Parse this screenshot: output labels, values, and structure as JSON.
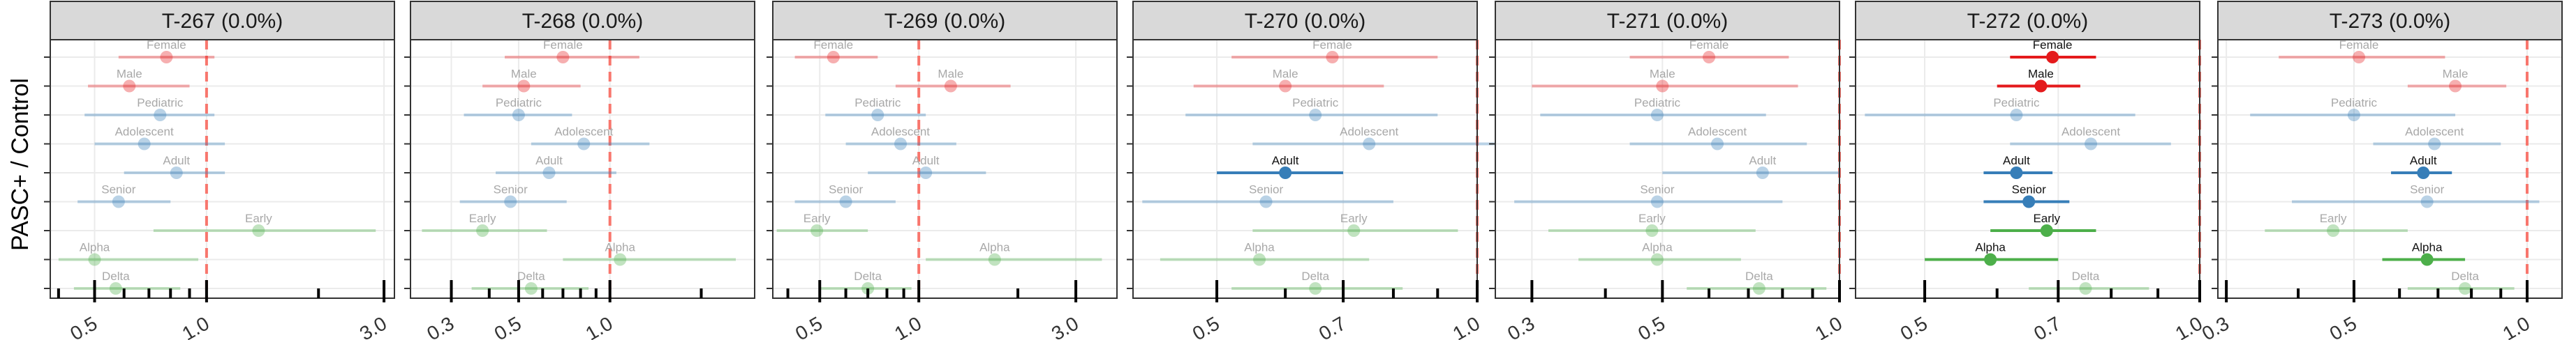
{
  "figure": {
    "ylabel": "PASC+ / Control",
    "colors": {
      "sex": "#E41A1C",
      "age": "#377EB8",
      "variant": "#4DAF4A",
      "reference_line": "#F8766D",
      "strip_fill": "#D9D9D9",
      "grid": "#EBEBEB"
    },
    "row_order": [
      "Female",
      "Male",
      "Pediatric",
      "Adolescent",
      "Adult",
      "Senior",
      "Early",
      "Alpha",
      "Delta"
    ],
    "row_groups": {
      "Female": "sex",
      "Male": "sex",
      "Pediatric": "age",
      "Adolescent": "age",
      "Adult": "age",
      "Senior": "age",
      "Early": "variant",
      "Alpha": "variant",
      "Delta": "variant"
    }
  },
  "chart_data": [
    {
      "type": "scatter",
      "title": "T-267 (0.0%)",
      "x_scale": "log",
      "xlim": [
        0.38,
        3.2
      ],
      "xticks": [
        "0.5",
        "1.0",
        "3.0"
      ],
      "x_minor": [
        0.4,
        0.6,
        0.7,
        0.8,
        0.9,
        2.0
      ],
      "series": [
        {
          "label": "Female",
          "estimate": 0.78,
          "lo": 0.58,
          "hi": 1.05,
          "significant": false
        },
        {
          "label": "Male",
          "estimate": 0.62,
          "lo": 0.48,
          "hi": 0.9,
          "significant": false
        },
        {
          "label": "Pediatric",
          "estimate": 0.75,
          "lo": 0.47,
          "hi": 1.05,
          "significant": false
        },
        {
          "label": "Adolescent",
          "estimate": 0.68,
          "lo": 0.5,
          "hi": 1.12,
          "significant": false
        },
        {
          "label": "Adult",
          "estimate": 0.83,
          "lo": 0.6,
          "hi": 1.12,
          "significant": false
        },
        {
          "label": "Senior",
          "estimate": 0.58,
          "lo": 0.45,
          "hi": 0.8,
          "significant": false
        },
        {
          "label": "Early",
          "estimate": 1.38,
          "lo": 0.72,
          "hi": 2.85,
          "significant": false
        },
        {
          "label": "Alpha",
          "estimate": 0.5,
          "lo": 0.4,
          "hi": 0.95,
          "significant": false
        },
        {
          "label": "Delta",
          "estimate": 0.57,
          "lo": 0.44,
          "hi": 0.85,
          "significant": false
        }
      ]
    },
    {
      "type": "scatter",
      "title": "T-268 (0.0%)",
      "x_scale": "log",
      "xlim": [
        0.22,
        3.0
      ],
      "xticks": [
        "0.3",
        "0.5",
        "1.0"
      ],
      "x_minor": [
        0.4,
        0.6,
        0.7,
        0.8,
        0.9,
        2.0
      ],
      "series": [
        {
          "label": "Female",
          "estimate": 0.7,
          "lo": 0.45,
          "hi": 1.25,
          "significant": false
        },
        {
          "label": "Male",
          "estimate": 0.52,
          "lo": 0.38,
          "hi": 0.8,
          "significant": false
        },
        {
          "label": "Pediatric",
          "estimate": 0.5,
          "lo": 0.33,
          "hi": 0.75,
          "significant": false
        },
        {
          "label": "Adolescent",
          "estimate": 0.82,
          "lo": 0.55,
          "hi": 1.35,
          "significant": false
        },
        {
          "label": "Adult",
          "estimate": 0.63,
          "lo": 0.42,
          "hi": 1.05,
          "significant": false
        },
        {
          "label": "Senior",
          "estimate": 0.47,
          "lo": 0.32,
          "hi": 0.72,
          "significant": false
        },
        {
          "label": "Early",
          "estimate": 0.38,
          "lo": 0.24,
          "hi": 0.62,
          "significant": false
        },
        {
          "label": "Alpha",
          "estimate": 1.08,
          "lo": 0.7,
          "hi": 2.6,
          "significant": false
        },
        {
          "label": "Delta",
          "estimate": 0.55,
          "lo": 0.35,
          "hi": 0.85,
          "significant": false
        }
      ]
    },
    {
      "type": "scatter",
      "title": "T-269 (0.0%)",
      "x_scale": "log",
      "xlim": [
        0.36,
        4.0
      ],
      "xticks": [
        "0.5",
        "1.0",
        "3.0"
      ],
      "x_minor": [
        0.4,
        0.6,
        0.7,
        0.8,
        0.9,
        2.0
      ],
      "series": [
        {
          "label": "Female",
          "estimate": 0.55,
          "lo": 0.42,
          "hi": 0.75,
          "significant": false
        },
        {
          "label": "Male",
          "estimate": 1.25,
          "lo": 0.85,
          "hi": 1.9,
          "significant": false
        },
        {
          "label": "Pediatric",
          "estimate": 0.75,
          "lo": 0.52,
          "hi": 1.05,
          "significant": false
        },
        {
          "label": "Adolescent",
          "estimate": 0.88,
          "lo": 0.6,
          "hi": 1.3,
          "significant": false
        },
        {
          "label": "Adult",
          "estimate": 1.05,
          "lo": 0.7,
          "hi": 1.6,
          "significant": false
        },
        {
          "label": "Senior",
          "estimate": 0.6,
          "lo": 0.42,
          "hi": 0.85,
          "significant": false
        },
        {
          "label": "Early",
          "estimate": 0.49,
          "lo": 0.37,
          "hi": 0.7,
          "significant": false
        },
        {
          "label": "Alpha",
          "estimate": 1.7,
          "lo": 1.05,
          "hi": 3.6,
          "significant": false
        },
        {
          "label": "Delta",
          "estimate": 0.7,
          "lo": 0.5,
          "hi": 0.95,
          "significant": false
        }
      ]
    },
    {
      "type": "scatter",
      "title": "T-270 (0.0%)",
      "x_scale": "log",
      "xlim": [
        0.4,
        1.0
      ],
      "xticks": [
        "0.5",
        "0.7",
        "1.0"
      ],
      "x_minor": [
        0.6,
        0.8,
        0.9
      ],
      "series": [
        {
          "label": "Female",
          "estimate": 0.68,
          "lo": 0.52,
          "hi": 0.9,
          "significant": false
        },
        {
          "label": "Male",
          "estimate": 0.6,
          "lo": 0.47,
          "hi": 0.78,
          "significant": false
        },
        {
          "label": "Pediatric",
          "estimate": 0.65,
          "lo": 0.46,
          "hi": 0.9,
          "significant": false
        },
        {
          "label": "Adolescent",
          "estimate": 0.75,
          "lo": 0.55,
          "hi": 1.05,
          "significant": false
        },
        {
          "label": "Adult",
          "estimate": 0.6,
          "lo": 0.5,
          "hi": 0.7,
          "significant": true
        },
        {
          "label": "Senior",
          "estimate": 0.57,
          "lo": 0.41,
          "hi": 0.8,
          "significant": false
        },
        {
          "label": "Early",
          "estimate": 0.72,
          "lo": 0.55,
          "hi": 0.95,
          "significant": false
        },
        {
          "label": "Alpha",
          "estimate": 0.56,
          "lo": 0.43,
          "hi": 0.75,
          "significant": false
        },
        {
          "label": "Delta",
          "estimate": 0.65,
          "lo": 0.52,
          "hi": 0.82,
          "significant": false
        }
      ]
    },
    {
      "type": "scatter",
      "title": "T-271 (0.0%)",
      "x_scale": "log",
      "xlim": [
        0.26,
        1.0
      ],
      "xticks": [
        "0.3",
        "0.5",
        "1.0"
      ],
      "x_minor": [
        0.4,
        0.6,
        0.7,
        0.8,
        0.9
      ],
      "series": [
        {
          "label": "Female",
          "estimate": 0.6,
          "lo": 0.44,
          "hi": 0.82,
          "significant": false
        },
        {
          "label": "Male",
          "estimate": 0.5,
          "lo": 0.3,
          "hi": 0.85,
          "significant": false
        },
        {
          "label": "Pediatric",
          "estimate": 0.49,
          "lo": 0.31,
          "hi": 0.75,
          "significant": false
        },
        {
          "label": "Adolescent",
          "estimate": 0.62,
          "lo": 0.44,
          "hi": 0.88,
          "significant": false
        },
        {
          "label": "Adult",
          "estimate": 0.74,
          "lo": 0.5,
          "hi": 1.0,
          "significant": false
        },
        {
          "label": "Senior",
          "estimate": 0.49,
          "lo": 0.28,
          "hi": 0.8,
          "significant": false
        },
        {
          "label": "Early",
          "estimate": 0.48,
          "lo": 0.32,
          "hi": 0.72,
          "significant": false
        },
        {
          "label": "Alpha",
          "estimate": 0.49,
          "lo": 0.36,
          "hi": 0.68,
          "significant": false
        },
        {
          "label": "Delta",
          "estimate": 0.73,
          "lo": 0.55,
          "hi": 0.95,
          "significant": false
        }
      ]
    },
    {
      "type": "scatter",
      "title": "T-272 (0.0%)",
      "x_scale": "log",
      "xlim": [
        0.42,
        1.0
      ],
      "xticks": [
        "0.5",
        "0.7",
        "1.0"
      ],
      "x_minor": [
        0.6,
        0.8,
        0.9
      ],
      "series": [
        {
          "label": "Female",
          "estimate": 0.69,
          "lo": 0.62,
          "hi": 0.77,
          "significant": true
        },
        {
          "label": "Male",
          "estimate": 0.67,
          "lo": 0.6,
          "hi": 0.74,
          "significant": true
        },
        {
          "label": "Pediatric",
          "estimate": 0.63,
          "lo": 0.43,
          "hi": 0.85,
          "significant": false
        },
        {
          "label": "Adolescent",
          "estimate": 0.76,
          "lo": 0.62,
          "hi": 0.93,
          "significant": false
        },
        {
          "label": "Adult",
          "estimate": 0.63,
          "lo": 0.58,
          "hi": 0.69,
          "significant": true
        },
        {
          "label": "Senior",
          "estimate": 0.65,
          "lo": 0.58,
          "hi": 0.72,
          "significant": true
        },
        {
          "label": "Early",
          "estimate": 0.68,
          "lo": 0.59,
          "hi": 0.77,
          "significant": true
        },
        {
          "label": "Alpha",
          "estimate": 0.59,
          "lo": 0.5,
          "hi": 0.7,
          "significant": true
        },
        {
          "label": "Delta",
          "estimate": 0.75,
          "lo": 0.65,
          "hi": 0.88,
          "significant": false
        }
      ]
    },
    {
      "type": "scatter",
      "title": "T-273 (0.0%)",
      "x_scale": "log",
      "xlim": [
        0.29,
        1.15
      ],
      "xticks": [
        "0.3",
        "0.5",
        "1.0"
      ],
      "x_minor": [
        0.4,
        0.6,
        0.7,
        0.8,
        0.9
      ],
      "series": [
        {
          "label": "Female",
          "estimate": 0.51,
          "lo": 0.37,
          "hi": 0.72,
          "significant": false
        },
        {
          "label": "Male",
          "estimate": 0.75,
          "lo": 0.62,
          "hi": 0.92,
          "significant": false
        },
        {
          "label": "Pediatric",
          "estimate": 0.5,
          "lo": 0.33,
          "hi": 0.75,
          "significant": false
        },
        {
          "label": "Adolescent",
          "estimate": 0.69,
          "lo": 0.54,
          "hi": 0.9,
          "significant": false
        },
        {
          "label": "Adult",
          "estimate": 0.66,
          "lo": 0.58,
          "hi": 0.74,
          "significant": true
        },
        {
          "label": "Senior",
          "estimate": 0.67,
          "lo": 0.39,
          "hi": 1.05,
          "significant": false
        },
        {
          "label": "Early",
          "estimate": 0.46,
          "lo": 0.35,
          "hi": 0.62,
          "significant": false
        },
        {
          "label": "Alpha",
          "estimate": 0.67,
          "lo": 0.56,
          "hi": 0.78,
          "significant": true
        },
        {
          "label": "Delta",
          "estimate": 0.78,
          "lo": 0.62,
          "hi": 0.95,
          "significant": false
        }
      ]
    }
  ]
}
